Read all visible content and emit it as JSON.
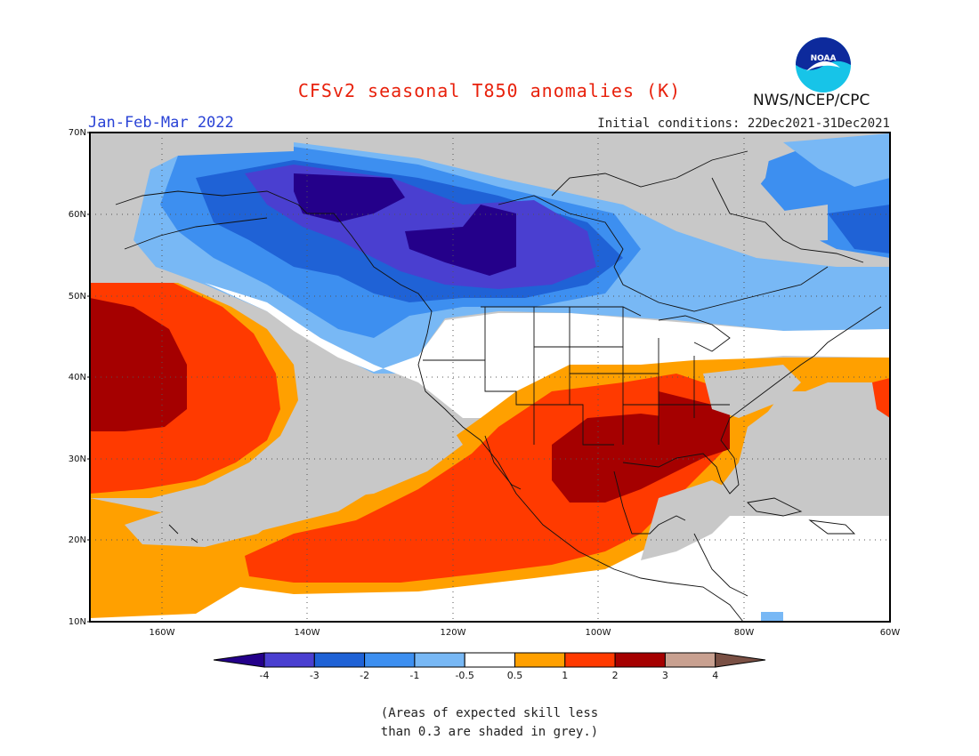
{
  "title": "CFSv2 seasonal T850 anomalies (K)",
  "season": "Jan-Feb-Mar 2022",
  "initial_conditions": "Initial conditions: 22Dec2021-31Dec2021",
  "agency": "NWS/NCEP/CPC",
  "logo_text": "NOAA",
  "lat_labels": [
    "70N",
    "60N",
    "50N",
    "40N",
    "30N",
    "20N",
    "10N"
  ],
  "lon_labels": [
    "160W",
    "140W",
    "120W",
    "100W",
    "80W",
    "60W"
  ],
  "colorbar": {
    "labels": [
      "-4",
      "-3",
      "-2",
      "-1",
      "-0.5",
      "0.5",
      "1",
      "2",
      "3",
      "4"
    ],
    "colors": {
      "lt_-4": "#24008a",
      "-4_-3": "#4a3fd0",
      "-3_-2": "#1f62d6",
      "-2_-1": "#3d8ff0",
      "-1_-0.5": "#78b8f5",
      "-0.5_0.5": "#ffffff",
      "0.5_1": "#ffa000",
      "1_2": "#ff3a00",
      "2_3": "#a50000",
      "3_4": "#c8a090",
      "gt_4": "#7a5044"
    },
    "grey_skill": "#c8c8c8"
  },
  "footnote": [
    "(Areas of expected skill less",
    "than 0.3 are shaded in grey.)"
  ]
}
